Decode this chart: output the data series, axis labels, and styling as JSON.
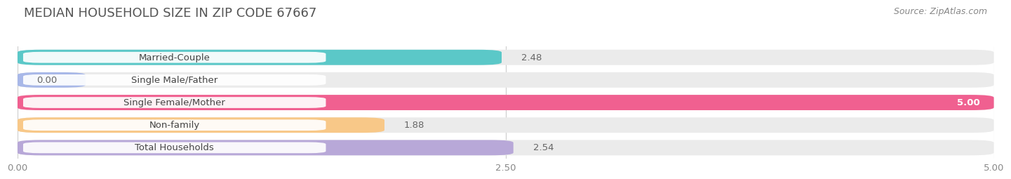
{
  "title": "MEDIAN HOUSEHOLD SIZE IN ZIP CODE 67667",
  "source": "Source: ZipAtlas.com",
  "categories": [
    "Married-Couple",
    "Single Male/Father",
    "Single Female/Mother",
    "Non-family",
    "Total Households"
  ],
  "values": [
    2.48,
    0.0,
    5.0,
    1.88,
    2.54
  ],
  "bar_colors": [
    "#5bc8c8",
    "#a8b8e8",
    "#f06090",
    "#f8c888",
    "#b8a8d8"
  ],
  "background_color": "#ffffff",
  "bar_bg_color": "#ebebeb",
  "xlim": [
    0,
    5.0
  ],
  "xticks": [
    0.0,
    2.5,
    5.0
  ],
  "xtick_labels": [
    "0.00",
    "2.50",
    "5.00"
  ],
  "title_fontsize": 13,
  "label_fontsize": 9.5,
  "value_fontsize": 9.5,
  "source_fontsize": 9
}
